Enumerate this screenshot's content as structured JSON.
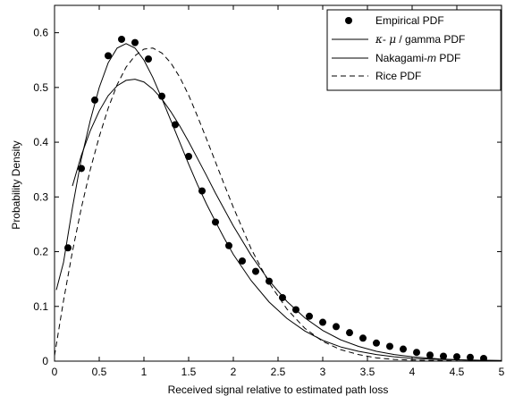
{
  "chart_data": {
    "type": "line",
    "xlabel": "Received signal relative to estimated path loss",
    "ylabel": "Probability Density",
    "xlim": [
      0,
      5
    ],
    "ylim": [
      0,
      0.65
    ],
    "x_ticks": [
      "0",
      "0.5",
      "1",
      "1.5",
      "2",
      "2.5",
      "3",
      "3.5",
      "4",
      "4.5",
      "5"
    ],
    "y_ticks": [
      "0",
      "0.1",
      "0.2",
      "0.3",
      "0.4",
      "0.5",
      "0.6"
    ],
    "grid": false,
    "legend_position": "top-right",
    "legend": {
      "empirical": "Empirical PDF",
      "kappa_mu_a": "κ",
      "kappa_mu_b": "- ",
      "kappa_mu_c": "μ",
      "kappa_mu_d": " / gamma PDF",
      "nakagami_a": "Nakagami-",
      "nakagami_b": "m",
      "nakagami_c": " PDF",
      "rice": "Rice PDF"
    },
    "series": [
      {
        "name": "Empirical PDF",
        "style": "markers",
        "x": [
          0.15,
          0.3,
          0.45,
          0.6,
          0.75,
          0.9,
          1.05,
          1.2,
          1.35,
          1.5,
          1.65,
          1.8,
          1.95,
          2.1,
          2.25,
          2.4,
          2.55,
          2.7,
          2.85,
          3.0,
          3.15,
          3.3,
          3.45,
          3.6,
          3.75,
          3.9,
          4.05,
          4.2,
          4.35,
          4.5,
          4.65,
          4.8
        ],
        "y": [
          0.207,
          0.352,
          0.477,
          0.558,
          0.588,
          0.582,
          0.552,
          0.484,
          0.432,
          0.374,
          0.311,
          0.254,
          0.211,
          0.183,
          0.164,
          0.146,
          0.116,
          0.094,
          0.082,
          0.071,
          0.063,
          0.052,
          0.042,
          0.033,
          0.027,
          0.022,
          0.016,
          0.011,
          0.009,
          0.008,
          0.007,
          0.005
        ]
      },
      {
        "name": "κ- μ / gamma PDF",
        "style": "solid",
        "x": [
          0.02,
          0.1,
          0.2,
          0.3,
          0.4,
          0.5,
          0.6,
          0.7,
          0.8,
          0.9,
          1.0,
          1.1,
          1.2,
          1.3,
          1.4,
          1.5,
          1.6,
          1.7,
          1.8,
          1.9,
          2.0,
          2.2,
          2.4,
          2.6,
          2.8,
          3.0,
          3.2,
          3.4,
          3.6,
          3.8,
          4.0,
          4.3,
          4.6,
          5.0
        ],
        "y": [
          0.13,
          0.18,
          0.28,
          0.37,
          0.44,
          0.5,
          0.545,
          0.572,
          0.58,
          0.572,
          0.55,
          0.518,
          0.48,
          0.44,
          0.4,
          0.36,
          0.322,
          0.287,
          0.255,
          0.224,
          0.195,
          0.147,
          0.108,
          0.078,
          0.055,
          0.038,
          0.026,
          0.018,
          0.012,
          0.008,
          0.005,
          0.003,
          0.002,
          0.001
        ]
      },
      {
        "name": "Nakagami-m PDF",
        "style": "solid",
        "x": [
          0.2,
          0.3,
          0.4,
          0.5,
          0.6,
          0.7,
          0.8,
          0.9,
          1.0,
          1.1,
          1.2,
          1.3,
          1.4,
          1.5,
          1.6,
          1.7,
          1.8,
          1.9,
          2.0,
          2.2,
          2.4,
          2.6,
          2.8,
          3.0,
          3.2,
          3.4,
          3.6,
          3.8,
          4.0,
          4.3,
          4.6,
          5.0
        ],
        "y": [
          0.32,
          0.376,
          0.421,
          0.457,
          0.485,
          0.503,
          0.513,
          0.515,
          0.51,
          0.497,
          0.479,
          0.456,
          0.43,
          0.401,
          0.37,
          0.339,
          0.307,
          0.277,
          0.247,
          0.193,
          0.147,
          0.109,
          0.079,
          0.056,
          0.039,
          0.027,
          0.018,
          0.012,
          0.008,
          0.004,
          0.002,
          0.001
        ]
      },
      {
        "name": "Rice PDF",
        "style": "dashed",
        "x": [
          0.0,
          0.1,
          0.2,
          0.3,
          0.4,
          0.5,
          0.6,
          0.7,
          0.8,
          0.9,
          1.0,
          1.1,
          1.2,
          1.3,
          1.4,
          1.5,
          1.6,
          1.7,
          1.8,
          1.9,
          2.0,
          2.2,
          2.4,
          2.6,
          2.8,
          3.0,
          3.2,
          3.4,
          3.6,
          3.8,
          4.0,
          4.3,
          4.6,
          5.0
        ],
        "y": [
          0.01,
          0.11,
          0.2,
          0.28,
          0.35,
          0.41,
          0.462,
          0.505,
          0.537,
          0.558,
          0.57,
          0.572,
          0.563,
          0.545,
          0.519,
          0.486,
          0.447,
          0.406,
          0.364,
          0.322,
          0.281,
          0.205,
          0.143,
          0.095,
          0.06,
          0.036,
          0.021,
          0.012,
          0.006,
          0.003,
          0.002,
          0.001,
          0.0,
          0.0
        ]
      }
    ]
  }
}
